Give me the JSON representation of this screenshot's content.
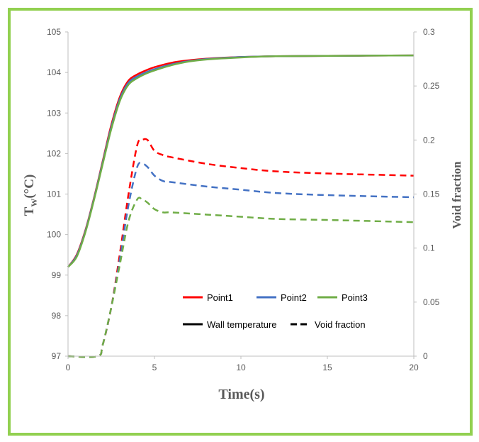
{
  "chart_data": {
    "type": "line",
    "xlabel": "Time(s)",
    "ylabel_main": "T",
    "ylabel_sub": "W",
    "ylabel_unit": "(°C)",
    "y2label": "Void fraction",
    "xlim": [
      0,
      20
    ],
    "ylim": [
      97,
      105
    ],
    "y2lim": [
      0,
      0.3
    ],
    "xticks": [
      "0",
      "5",
      "10",
      "15",
      "20"
    ],
    "yticks": [
      "97",
      "98",
      "99",
      "100",
      "101",
      "102",
      "103",
      "104",
      "105"
    ],
    "y2ticks": [
      "0",
      "0.05",
      "0.1",
      "0.15",
      "0.2",
      "0.25",
      "0.3"
    ],
    "grid": false,
    "legend_position": "bottom-right",
    "legend": [
      {
        "label": "Point1",
        "color": "#ff0000",
        "style": "dashed"
      },
      {
        "label": "Point2",
        "color": "#4472c4",
        "style": "dashed"
      },
      {
        "label": "Point3",
        "color": "#70ad47",
        "style": "dashed"
      },
      {
        "label": "Wall temperature",
        "color": "#000000",
        "style": "solid"
      },
      {
        "label": "Void fraction",
        "color": "#000000",
        "style": "dashed"
      }
    ],
    "series": [
      {
        "name": "Point1",
        "quantity": "Wall temperature",
        "axis": "left",
        "color": "#ff0000",
        "style": "solid",
        "x": [
          0,
          0.5,
          1,
          1.5,
          2,
          2.5,
          3,
          3.5,
          4,
          4.5,
          5,
          6,
          7,
          8,
          10,
          12,
          15,
          20
        ],
        "y": [
          99.2,
          99.5,
          100.1,
          100.9,
          101.8,
          102.7,
          103.4,
          103.8,
          103.95,
          104.05,
          104.13,
          104.24,
          104.3,
          104.34,
          104.38,
          104.4,
          104.41,
          104.42
        ]
      },
      {
        "name": "Point2",
        "quantity": "Wall temperature",
        "axis": "left",
        "color": "#4472c4",
        "style": "solid",
        "x": [
          0,
          0.5,
          1,
          1.5,
          2,
          2.5,
          3,
          3.5,
          4,
          4.5,
          5,
          6,
          7,
          8,
          10,
          12,
          15,
          20
        ],
        "y": [
          99.2,
          99.48,
          100.08,
          100.88,
          101.77,
          102.65,
          103.35,
          103.75,
          103.9,
          104.0,
          104.08,
          104.2,
          104.28,
          104.33,
          104.38,
          104.4,
          104.41,
          104.42
        ]
      },
      {
        "name": "Point3",
        "quantity": "Wall temperature",
        "axis": "left",
        "color": "#70ad47",
        "style": "solid",
        "x": [
          0,
          0.5,
          1,
          1.5,
          2,
          2.5,
          3,
          3.5,
          4,
          4.5,
          5,
          6,
          7,
          8,
          10,
          12,
          15,
          20
        ],
        "y": [
          99.2,
          99.45,
          100.05,
          100.85,
          101.73,
          102.6,
          103.3,
          103.7,
          103.86,
          103.97,
          104.05,
          104.18,
          104.27,
          104.32,
          104.37,
          104.4,
          104.41,
          104.42
        ]
      },
      {
        "name": "Point1",
        "quantity": "Void fraction",
        "axis": "right",
        "color": "#ff0000",
        "style": "dashed",
        "x": [
          0,
          1.7,
          2,
          2.5,
          3,
          3.5,
          4,
          4.3,
          4.6,
          5,
          5.5,
          6,
          8,
          10,
          12,
          15,
          20
        ],
        "y": [
          0,
          0,
          0.01,
          0.045,
          0.095,
          0.15,
          0.195,
          0.2,
          0.2,
          0.19,
          0.186,
          0.184,
          0.178,
          0.174,
          0.171,
          0.169,
          0.167
        ]
      },
      {
        "name": "Point2",
        "quantity": "Void fraction",
        "axis": "right",
        "color": "#4472c4",
        "style": "dashed",
        "x": [
          0,
          1.7,
          2,
          2.5,
          3,
          3.5,
          4,
          4.3,
          4.6,
          5,
          5.5,
          6,
          8,
          10,
          12,
          15,
          20
        ],
        "y": [
          0,
          0,
          0.01,
          0.045,
          0.09,
          0.14,
          0.175,
          0.178,
          0.175,
          0.167,
          0.162,
          0.161,
          0.157,
          0.154,
          0.151,
          0.149,
          0.147
        ]
      },
      {
        "name": "Point3",
        "quantity": "Void fraction",
        "axis": "right",
        "color": "#70ad47",
        "style": "dashed",
        "x": [
          0,
          1.7,
          2,
          2.5,
          3,
          3.5,
          4,
          4.3,
          4.6,
          5,
          5.5,
          6,
          8,
          10,
          12,
          15,
          20
        ],
        "y": [
          0,
          0,
          0.01,
          0.045,
          0.085,
          0.125,
          0.145,
          0.145,
          0.142,
          0.136,
          0.133,
          0.133,
          0.131,
          0.129,
          0.127,
          0.126,
          0.124
        ]
      }
    ]
  }
}
